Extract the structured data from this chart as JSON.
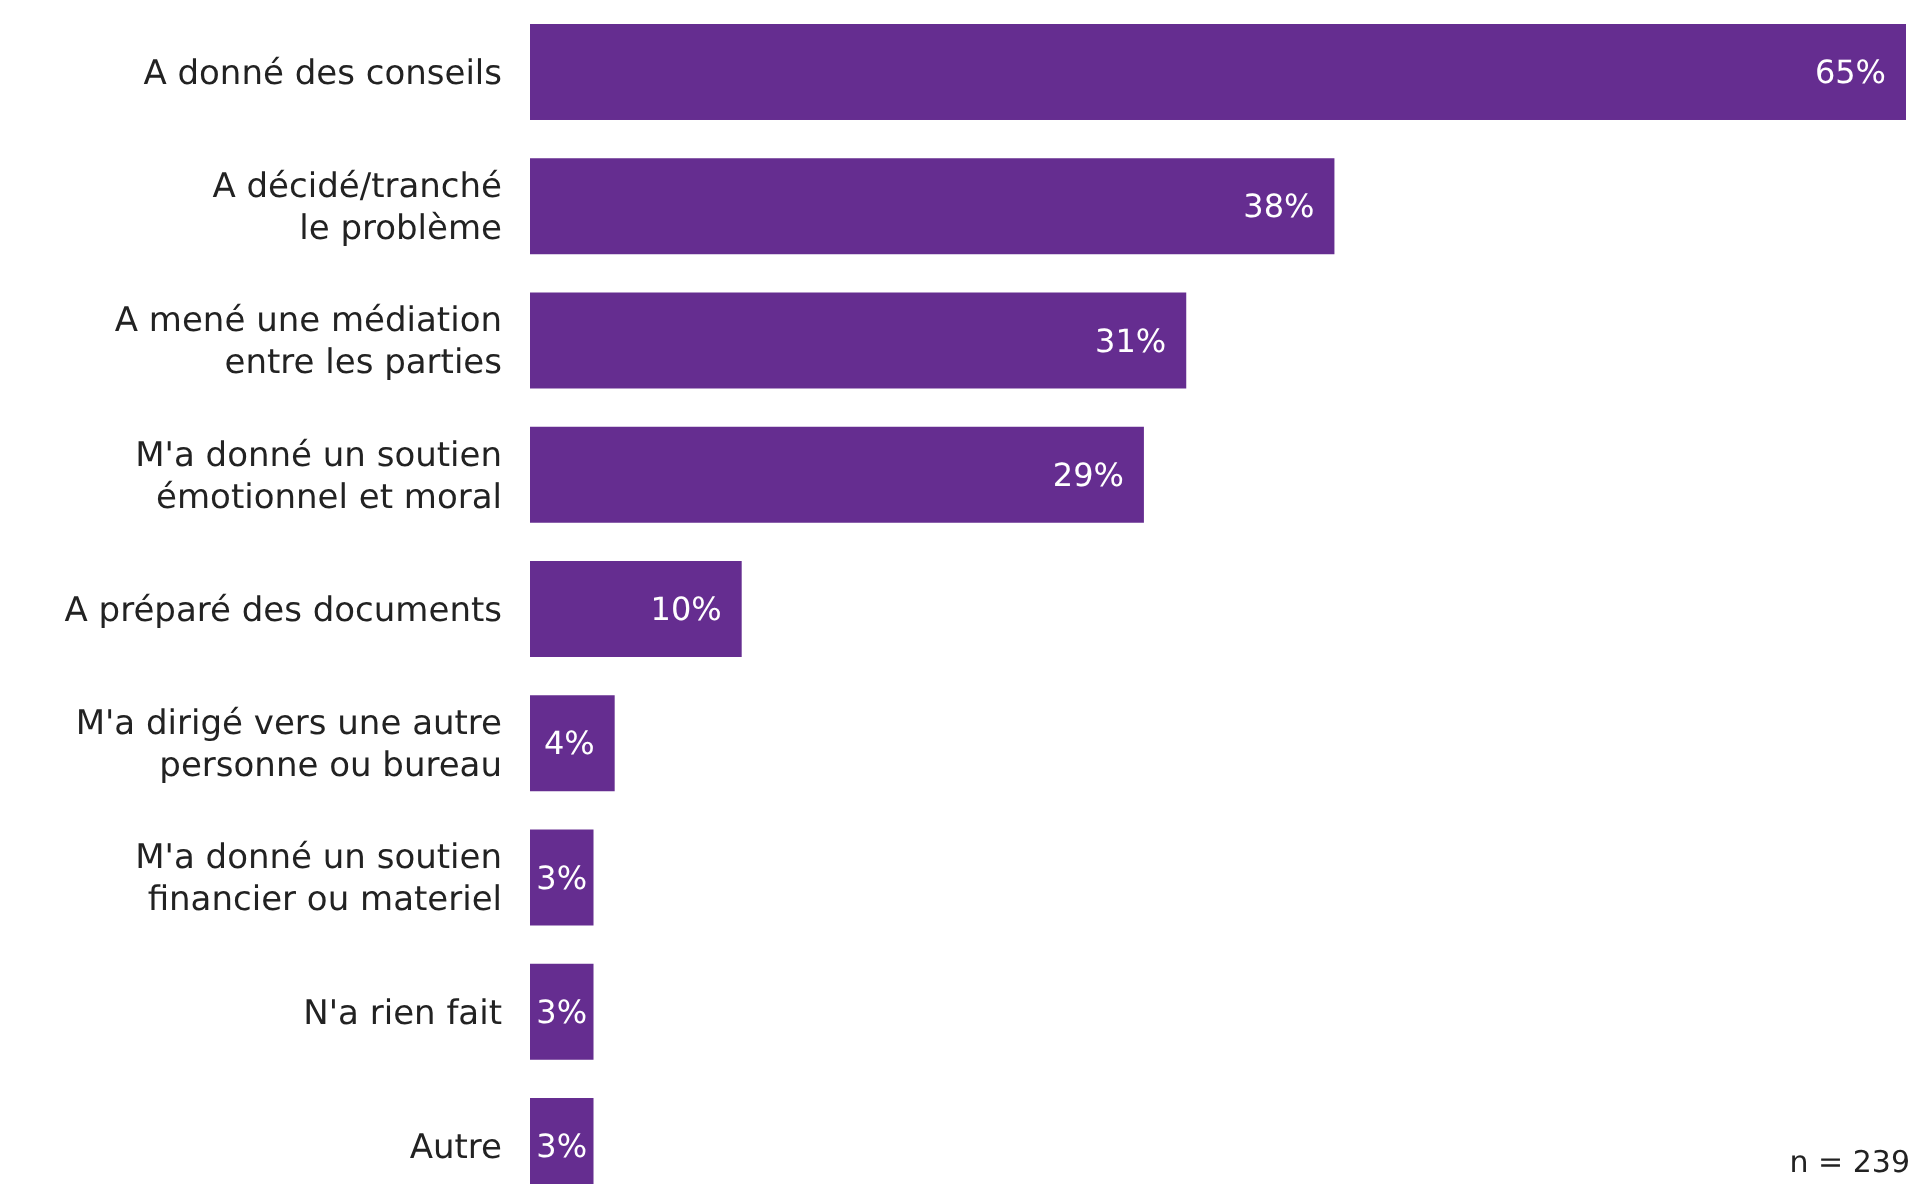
{
  "chart_data": {
    "type": "bar",
    "orientation": "horizontal",
    "categories": [
      "A donné des conseils",
      "A décidé/tranché\nle problème",
      "A mené une médiation\nentre les parties",
      "M'a donné un soutien\némotionnel et moral",
      "A préparé des documents",
      "M'a dirigé vers une autre\npersonne ou bureau",
      "M'a donné un soutien\nfinancier ou materiel",
      "N'a rien fait",
      "Autre"
    ],
    "values": [
      65,
      38,
      31,
      29,
      10,
      4,
      3,
      3,
      3
    ],
    "value_labels": [
      "65%",
      "38%",
      "31%",
      "29%",
      "10%",
      "4%",
      "3%",
      "3%",
      "3%"
    ],
    "color": "#652d90",
    "annotations": [
      "n = 239"
    ]
  }
}
